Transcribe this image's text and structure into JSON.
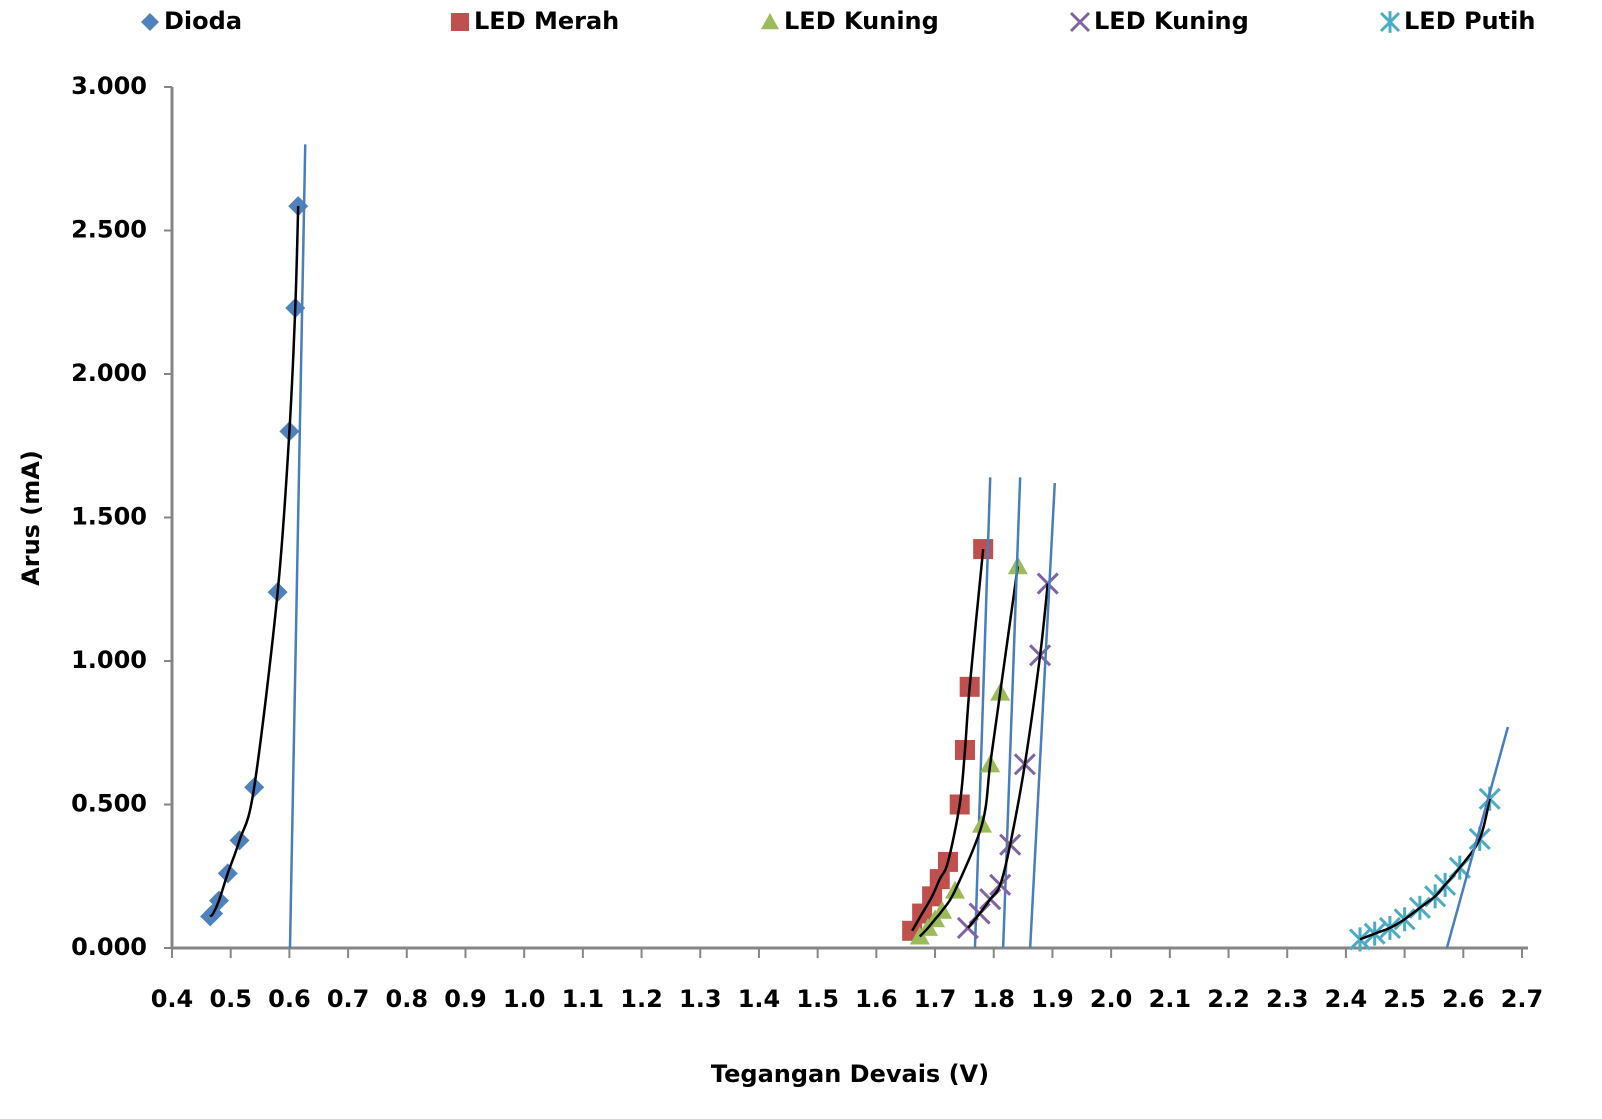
{
  "chart_data": {
    "type": "scatter",
    "xlabel": "Tegangan Devais (V)",
    "ylabel": "Arus (mA)",
    "xlim": [
      0.4,
      2.7
    ],
    "ylim": [
      0,
      3
    ],
    "xticks": [
      0.4,
      0.5,
      0.6,
      0.7,
      0.8,
      0.9,
      {
        "value": 1.0,
        "label": "1.0"
      },
      1.1,
      1.2,
      1.3,
      1.4,
      1.5,
      1.6,
      1.7,
      1.8,
      1.9,
      {
        "value": 2.0,
        "label": "2.0"
      },
      2.1,
      2.2,
      2.3,
      2.4,
      2.5,
      2.6,
      2.7
    ],
    "yticks": [
      {
        "value": 0,
        "label": "0.000"
      },
      {
        "value": 0.5,
        "label": "0.500"
      },
      {
        "value": 1,
        "label": "1.000"
      },
      {
        "value": 1.5,
        "label": "1.500"
      },
      {
        "value": 2,
        "label": "2.000"
      },
      {
        "value": 2.5,
        "label": "2.500"
      },
      {
        "value": 3,
        "label": "3.000"
      }
    ],
    "legend": "top",
    "series": [
      {
        "name": "Dioda",
        "color": "#4f81bd",
        "marker": "diamond",
        "x": [
          0.465,
          0.47,
          0.48,
          0.495,
          0.515,
          0.54,
          0.58,
          0.6,
          0.61,
          0.615
        ],
        "values": [
          0.11,
          0.12,
          0.165,
          0.26,
          0.375,
          0.56,
          1.24,
          1.8,
          2.23,
          2.585
        ],
        "tangent": {
          "x": [
            0.601,
            0.627
          ],
          "y": [
            0,
            2.8
          ]
        }
      },
      {
        "name": "LED Merah",
        "color": "#c0504d",
        "marker": "square",
        "x": [
          1.661,
          1.678,
          1.695,
          1.708,
          1.722,
          1.742,
          1.751,
          1.759,
          1.782
        ],
        "values": [
          0.06,
          0.12,
          0.18,
          0.24,
          0.3,
          0.5,
          0.69,
          0.91,
          1.39
        ],
        "tangent": {
          "x": [
            1.768,
            1.794
          ],
          "y": [
            0,
            1.64
          ]
        }
      },
      {
        "name": "LED Kuning",
        "color": "#9bbb59",
        "marker": "triangle",
        "x": [
          1.674,
          1.688,
          1.7,
          1.712,
          1.734,
          1.78,
          1.794,
          1.811,
          1.841
        ],
        "values": [
          0.04,
          0.07,
          0.1,
          0.13,
          0.2,
          0.43,
          0.64,
          0.89,
          1.33
        ],
        "tangent": {
          "x": [
            1.816,
            1.845
          ],
          "y": [
            0,
            1.64
          ]
        }
      },
      {
        "name": "LED Kuning",
        "color": "#8064a2",
        "marker": "x",
        "x": [
          1.756,
          1.776,
          1.794,
          1.811,
          1.828,
          1.853,
          1.879,
          1.892
        ],
        "values": [
          0.07,
          0.12,
          0.17,
          0.22,
          0.36,
          0.64,
          1.02,
          1.27
        ],
        "tangent": {
          "x": [
            1.862,
            1.904
          ],
          "y": [
            0,
            1.62
          ]
        }
      },
      {
        "name": "LED Putih",
        "color": "#4bacc6",
        "marker": "asterisk",
        "x": [
          2.424,
          2.449,
          2.475,
          2.5,
          2.526,
          2.552,
          2.569,
          2.594,
          2.628,
          2.645
        ],
        "values": [
          0.03,
          0.05,
          0.07,
          0.1,
          0.14,
          0.18,
          0.22,
          0.28,
          0.38,
          0.52
        ],
        "tangent": {
          "x": [
            2.572,
            2.676
          ],
          "y": [
            0,
            0.77
          ]
        }
      }
    ]
  }
}
